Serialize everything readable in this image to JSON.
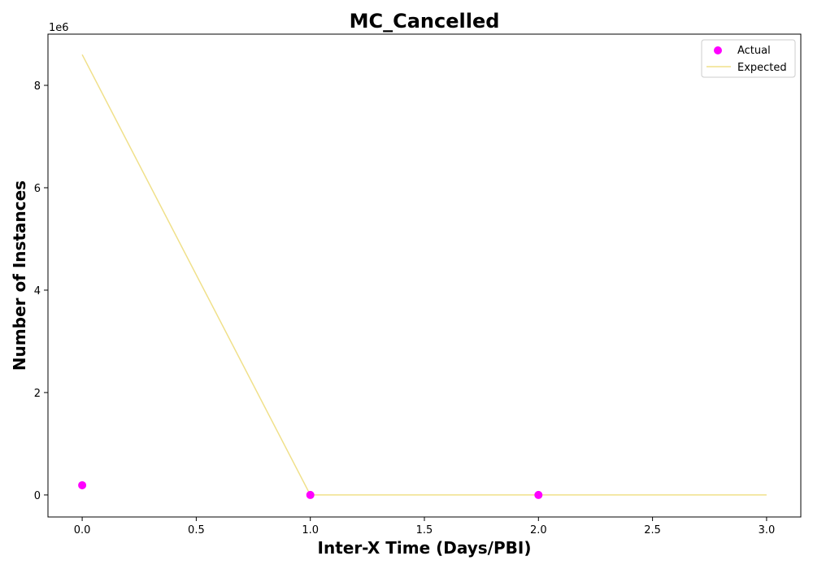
{
  "chart_data": {
    "type": "line",
    "title": "MC_Cancelled",
    "xlabel": "Inter-X Time (Days/PBI)",
    "ylabel": "Number of Instances",
    "y_offset_label": "1e6",
    "xlim": [
      -0.15,
      3.15
    ],
    "ylim": [
      -0.43,
      9.0
    ],
    "y_scale": 1000000,
    "x_ticks": [
      0.0,
      0.5,
      1.0,
      1.5,
      2.0,
      2.5,
      3.0
    ],
    "x_tick_labels": [
      "0.0",
      "0.5",
      "1.0",
      "1.5",
      "2.0",
      "2.5",
      "3.0"
    ],
    "y_ticks": [
      0,
      2,
      4,
      6,
      8
    ],
    "y_tick_labels": [
      "0",
      "2",
      "4",
      "6",
      "8"
    ],
    "grid": false,
    "legend_position": "top-right",
    "series": [
      {
        "name": "Actual",
        "kind": "scatter",
        "color": "#ff00ff",
        "x": [
          0,
          1,
          2
        ],
        "y": [
          0.19,
          0.0,
          0.0
        ]
      },
      {
        "name": "Expected",
        "kind": "line",
        "color": "#f0e08a",
        "x": [
          0,
          1,
          2,
          3
        ],
        "y": [
          8.6,
          0.0,
          0.0,
          0.0
        ]
      }
    ]
  }
}
